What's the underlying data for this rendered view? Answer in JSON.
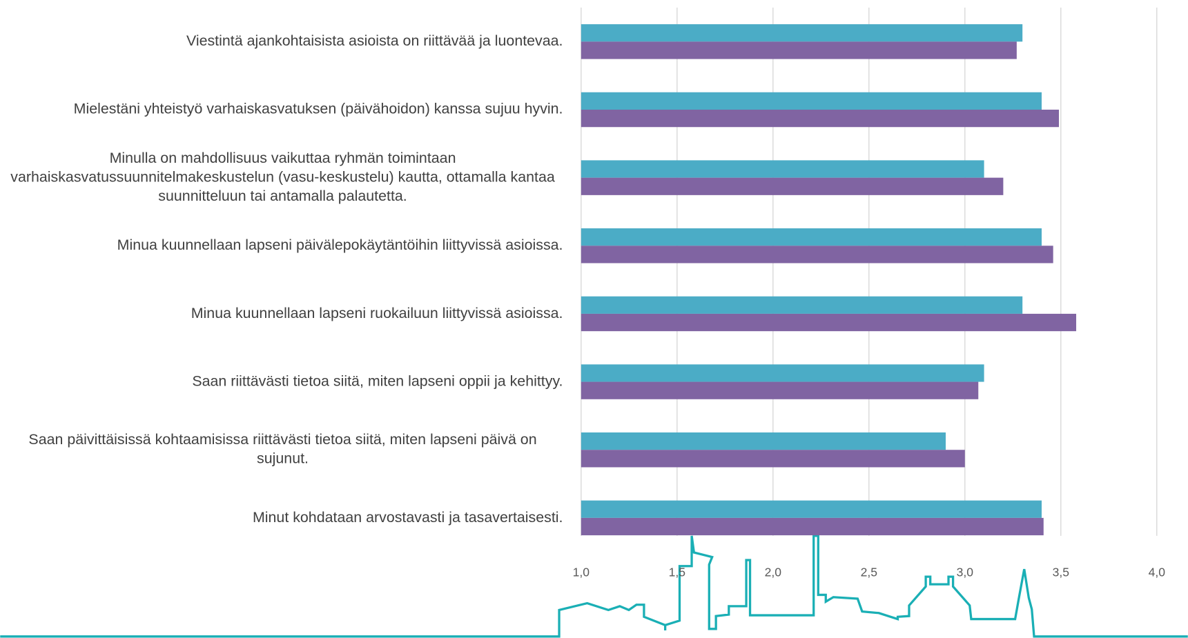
{
  "chart_data": {
    "type": "hbar",
    "categories": [
      "Viestintä ajankohtaisista asioista on riittävää ja luontevaa.",
      "Mielestäni yhteistyö varhaiskasvatuksen (päivähoidon) kanssa sujuu hyvin.",
      "Minulla on mahdollisuus vaikuttaa ryhmän toimintaan varhaiskasvatussuunnitelmakeskustelun (vasu-keskustelu) kautta, ottamalla kantaa suunnitteluun tai antamalla palautetta.",
      "Minua kuunnellaan lapseni päivälepokäytäntöihin liittyvissä asioissa.",
      "Minua kuunnellaan lapseni ruokailuun liittyvissä asioissa.",
      "Saan riittävästi tietoa siitä, miten lapseni oppii ja kehittyy.",
      "Saan päivittäisissä kohtaamisissa riittävästi tietoa siitä, miten lapseni päivä on sujunut.",
      "Minut kohdataan arvostavasti ja tasavertaisesti."
    ],
    "series": [
      {
        "color": "#4bacc6",
        "values": [
          3.3,
          3.4,
          3.1,
          3.4,
          3.3,
          3.1,
          2.9,
          3.4
        ]
      },
      {
        "color": "#8064a2",
        "values": [
          3.27,
          3.49,
          3.2,
          3.46,
          3.58,
          3.07,
          3.0,
          3.41
        ]
      }
    ],
    "xlim": [
      1.0,
      4.0
    ],
    "xticks": [
      {
        "value": 1.0,
        "label": "1,0"
      },
      {
        "value": 1.5,
        "label": "1,5"
      },
      {
        "value": 2.0,
        "label": "2,0"
      },
      {
        "value": 2.5,
        "label": "2,5"
      },
      {
        "value": 3.0,
        "label": "3,0"
      },
      {
        "value": 3.5,
        "label": "3,5"
      },
      {
        "value": 4.0,
        "label": "4,0"
      }
    ],
    "grid": true
  }
}
